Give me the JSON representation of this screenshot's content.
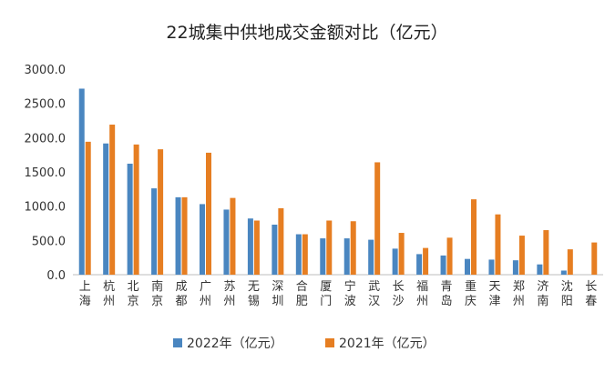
{
  "chart_data": {
    "type": "bar",
    "title": "22城集中供地成交金额对比（亿元）",
    "categories": [
      "上海",
      "杭州",
      "北京",
      "南京",
      "成都",
      "广州",
      "苏州",
      "无锡",
      "深圳",
      "合肥",
      "厦门",
      "宁波",
      "武汉",
      "长沙",
      "福州",
      "青岛",
      "重庆",
      "天津",
      "郑州",
      "济南",
      "沈阳",
      "长春"
    ],
    "series": [
      {
        "name": "2022年（亿元）",
        "color": "#4a86c0",
        "values": [
          2715,
          1915,
          1620,
          1260,
          1130,
          1030,
          950,
          820,
          730,
          590,
          530,
          530,
          510,
          380,
          300,
          280,
          230,
          220,
          210,
          150,
          60,
          0
        ]
      },
      {
        "name": "2021年（亿元）",
        "color": "#e67e22",
        "values": [
          1940,
          2190,
          1900,
          1830,
          1130,
          1780,
          1120,
          790,
          970,
          590,
          790,
          780,
          1640,
          610,
          390,
          540,
          1100,
          880,
          570,
          650,
          370,
          470
        ]
      }
    ],
    "ylim": [
      0,
      3000
    ],
    "yticks": [
      "0.0",
      "500.0",
      "1000.0",
      "1500.0",
      "2000.0",
      "2500.0",
      "3000.0"
    ],
    "grid": false,
    "legend_position": "bottom"
  }
}
